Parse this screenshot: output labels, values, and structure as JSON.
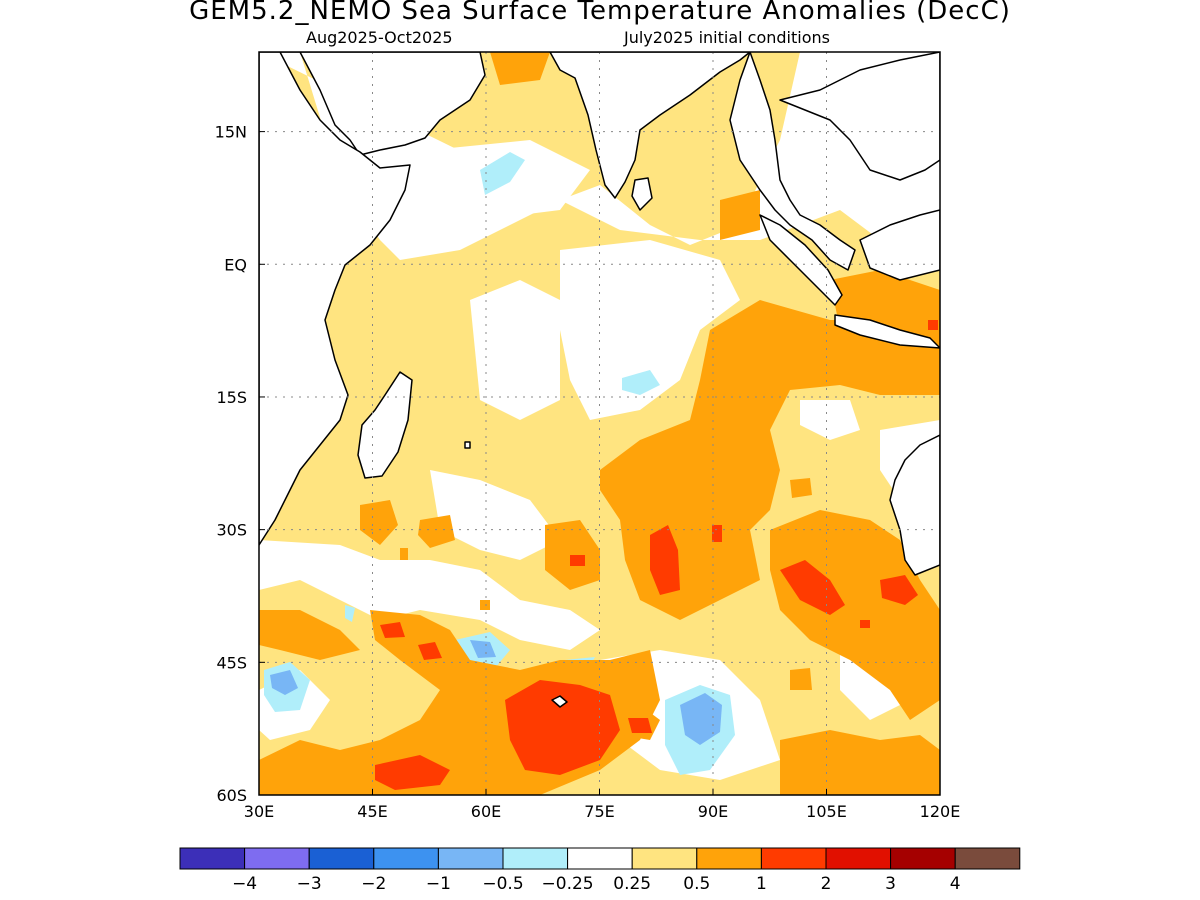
{
  "header": {
    "title": "GEM5.2_NEMO Sea Surface Temperature Anomalies (DecC)",
    "period": "Aug2025-Oct2025",
    "initial_conditions": "July2025 initial conditions"
  },
  "map": {
    "projection": "lat-lon",
    "lon_range": [
      30,
      120
    ],
    "lat_range": [
      -60,
      24
    ],
    "gridlines": true,
    "lon_ticks": [
      {
        "value": 30,
        "label": "30E"
      },
      {
        "value": 45,
        "label": "45E"
      },
      {
        "value": 60,
        "label": "60E"
      },
      {
        "value": 75,
        "label": "75E"
      },
      {
        "value": 90,
        "label": "90E"
      },
      {
        "value": 105,
        "label": "105E"
      },
      {
        "value": 120,
        "label": "120E"
      }
    ],
    "lat_ticks": [
      {
        "value": 15,
        "label": "15N"
      },
      {
        "value": 0,
        "label": "EQ"
      },
      {
        "value": -15,
        "label": "15S"
      },
      {
        "value": -30,
        "label": "30S"
      },
      {
        "value": -45,
        "label": "45S"
      },
      {
        "value": -60,
        "label": "60S"
      }
    ]
  },
  "colorbar": {
    "colors": [
      "#3c2fb8",
      "#7e6cf0",
      "#1a60d4",
      "#3d92f0",
      "#78b6f5",
      "#b0eefa",
      "#ffffff",
      "#ffe480",
      "#ffa30a",
      "#ff3b00",
      "#e11000",
      "#a50000",
      "#7a4b3c"
    ],
    "labels": [
      "−4",
      "−3",
      "−2",
      "−1",
      "−0.5",
      "−0.25",
      "0.25",
      "0.5",
      "1",
      "2",
      "3",
      "4"
    ]
  }
}
